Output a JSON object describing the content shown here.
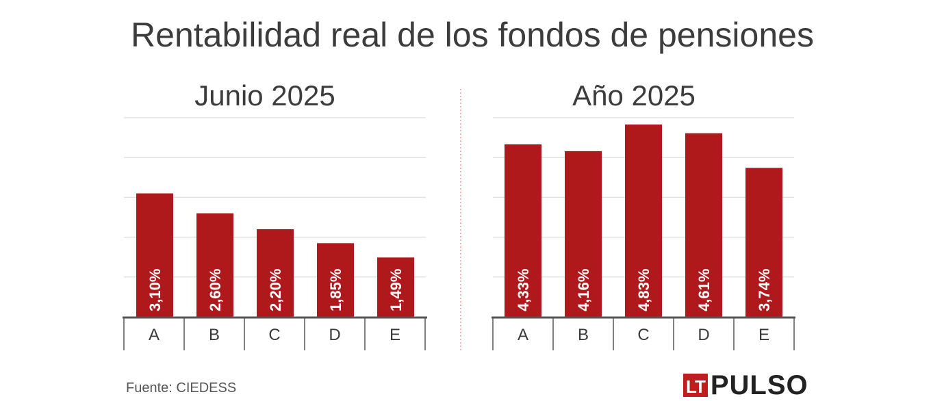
{
  "title": "Rentabilidad real de los fondos de pensiones",
  "source": "Fuente: CIEDESS",
  "logo": {
    "box_text": "LT",
    "word": "PULSO"
  },
  "colors": {
    "bar": "#b0191c",
    "grid": "#e2e2e2",
    "axis": "#555555",
    "divider": "#f2b8b8",
    "label": "#ffffff"
  },
  "chart_data": [
    {
      "type": "bar",
      "title": "Junio 2025",
      "categories": [
        "A",
        "B",
        "C",
        "D",
        "E"
      ],
      "values": [
        3.1,
        2.6,
        2.2,
        1.85,
        1.49
      ],
      "labels": [
        "3,10%",
        "2,60%",
        "2,20%",
        "1,85%",
        "1,49%"
      ],
      "ylim": [
        0,
        5
      ],
      "grid": true
    },
    {
      "type": "bar",
      "title": "Año 2025",
      "categories": [
        "A",
        "B",
        "C",
        "D",
        "E"
      ],
      "values": [
        4.33,
        4.16,
        4.83,
        4.61,
        3.74
      ],
      "labels": [
        "4,33%",
        "4,16%",
        "4,83%",
        "4,61%",
        "3,74%"
      ],
      "ylim": [
        0,
        5
      ],
      "grid": true
    }
  ]
}
